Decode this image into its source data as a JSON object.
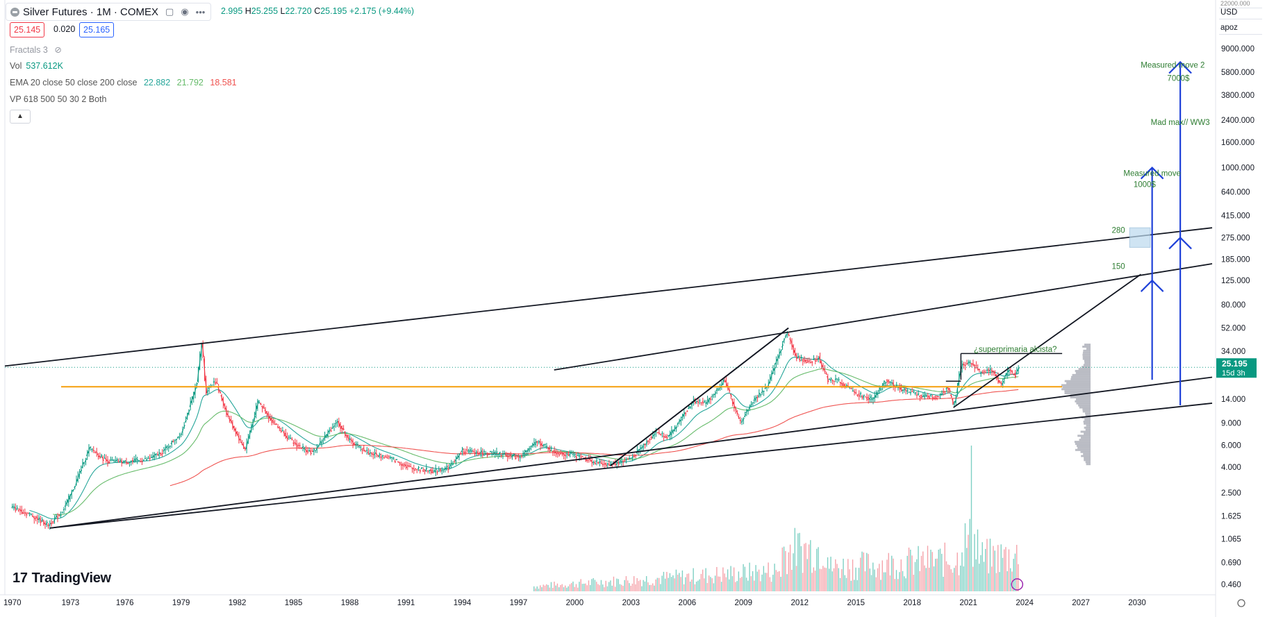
{
  "header": {
    "symbol": "Silver Futures · 1M · COMEX",
    "ohlc_tail": "2.995",
    "high_label": "H",
    "high": "25.255",
    "low_label": "L",
    "low": "22.720",
    "close_label": "C",
    "close": "25.195",
    "change": "+2.175 (+9.44%)",
    "bid": "25.145",
    "spread": "0.020",
    "ask": "25.165"
  },
  "indicators": {
    "fractals": "Fractals 3",
    "vol_label": "Vol",
    "vol_value": "537.612K",
    "ema_label": "EMA 20 close 50 close 200 close",
    "ema_values": [
      "22.882",
      "21.792",
      "18.581"
    ],
    "vp_label": "VP 618 500 50 30 2 Both"
  },
  "axis_panel": {
    "currency": "USD",
    "mode": "apoz",
    "top_cut": "22000.000"
  },
  "price_tag": {
    "value": "25.195",
    "countdown": "15d 3h"
  },
  "brand": "TradingView",
  "colors": {
    "up": "#089981",
    "down": "#f23645",
    "ema20": "#26a69a",
    "ema50": "#66bb6a",
    "ema200": "#ef5350",
    "blue": "#1e40d8",
    "orange": "#f59e0b",
    "annot": "#2e7d32"
  },
  "chart_data": {
    "type": "candlestick",
    "title": "Silver Futures · 1M · COMEX",
    "y_scale": "log",
    "ylim": [
      0.38,
      22000
    ],
    "xlim": [
      1969.6,
      2034.0
    ],
    "x_ticks": [
      "1970",
      "1973",
      "1976",
      "1979",
      "1982",
      "1985",
      "1988",
      "1991",
      "1994",
      "1997",
      "2000",
      "2003",
      "2006",
      "2009",
      "2012",
      "2015",
      "2018",
      "2021",
      "2024",
      "2027",
      "2030"
    ],
    "x_tick_years": [
      1970.0,
      1973.1,
      1976.0,
      1979.0,
      1982.0,
      1985.0,
      1988.0,
      1991.0,
      1994.0,
      1997.0,
      2000.0,
      2003.0,
      2006.0,
      2009.0,
      2012.0,
      2015.0,
      2018.0,
      2021.0,
      2024.0,
      2027.0,
      2030.0
    ],
    "y_ticks": [
      "9000.000",
      "5800.000",
      "3800.000",
      "2400.000",
      "1600.000",
      "1000.000",
      "640.000",
      "415.000",
      "275.000",
      "185.000",
      "125.000",
      "80.000",
      "52.000",
      "34.000",
      "14.000",
      "9.000",
      "6.000",
      "4.000",
      "2.500",
      "1.625",
      "1.065",
      "0.690",
      "0.460"
    ],
    "y_tick_values": [
      9000,
      5800,
      3800,
      2400,
      1600,
      1000,
      640,
      415,
      275,
      185,
      125,
      80,
      52,
      34,
      14,
      9,
      6,
      4,
      2.5,
      1.625,
      1.065,
      0.69,
      0.46
    ],
    "price_path": [
      [
        1970.0,
        1.9
      ],
      [
        1971.0,
        1.65
      ],
      [
        1971.9,
        1.38
      ],
      [
        1972.6,
        1.7
      ],
      [
        1973.2,
        2.6
      ],
      [
        1974.1,
        5.7
      ],
      [
        1975.0,
        4.5
      ],
      [
        1976.0,
        4.4
      ],
      [
        1977.2,
        4.6
      ],
      [
        1978.0,
        5.3
      ],
      [
        1979.0,
        7.5
      ],
      [
        1979.8,
        18
      ],
      [
        1980.1,
        41
      ],
      [
        1980.3,
        16
      ],
      [
        1980.8,
        20
      ],
      [
        1981.5,
        10
      ],
      [
        1982.4,
        5.5
      ],
      [
        1983.1,
        13.5
      ],
      [
        1983.8,
        9.5
      ],
      [
        1985.0,
        6.2
      ],
      [
        1986.0,
        5.2
      ],
      [
        1987.3,
        9.3
      ],
      [
        1988.0,
        6.5
      ],
      [
        1989.0,
        5.2
      ],
      [
        1990.2,
        4.7
      ],
      [
        1991.2,
        3.95
      ],
      [
        1992.5,
        3.7
      ],
      [
        1993.3,
        4.0
      ],
      [
        1994.0,
        5.4
      ],
      [
        1995.0,
        5.2
      ],
      [
        1996.0,
        5.1
      ],
      [
        1997.0,
        4.8
      ],
      [
        1998.0,
        6.4
      ],
      [
        1999.0,
        5.2
      ],
      [
        2000.0,
        5.0
      ],
      [
        2001.0,
        4.4
      ],
      [
        2001.9,
        4.15
      ],
      [
        2003.0,
        4.7
      ],
      [
        2004.3,
        7.6
      ],
      [
        2005.0,
        7.0
      ],
      [
        2006.3,
        13.5
      ],
      [
        2007.0,
        13.0
      ],
      [
        2008.0,
        20
      ],
      [
        2008.8,
        9.0
      ],
      [
        2009.5,
        13.5
      ],
      [
        2010.3,
        18
      ],
      [
        2011.3,
        49
      ],
      [
        2011.8,
        30
      ],
      [
        2012.5,
        28
      ],
      [
        2013.0,
        30
      ],
      [
        2013.5,
        20
      ],
      [
        2014.0,
        20
      ],
      [
        2015.0,
        15.5
      ],
      [
        2015.9,
        13.8
      ],
      [
        2016.6,
        20
      ],
      [
        2017.5,
        16.5
      ],
      [
        2018.5,
        14.8
      ],
      [
        2019.3,
        14.5
      ],
      [
        2019.9,
        17.5
      ],
      [
        2020.2,
        12
      ],
      [
        2020.6,
        26
      ],
      [
        2021.1,
        28
      ],
      [
        2021.6,
        23
      ],
      [
        2022.3,
        24
      ],
      [
        2022.7,
        18
      ],
      [
        2023.1,
        24
      ],
      [
        2023.5,
        22
      ],
      [
        2023.7,
        25.2
      ]
    ],
    "series": [
      {
        "name": "EMA 20 close",
        "value": 22.882
      },
      {
        "name": "EMA 50 close",
        "value": 21.792
      },
      {
        "name": "EMA 200 close",
        "value": 18.581
      }
    ],
    "volume_note": "Vol 537.612K",
    "trendlines": [
      {
        "from": [
          1969.6,
          25.8
        ],
        "to": [
          2034.0,
          330
        ]
      },
      {
        "from": [
          1998.9,
          24.0
        ],
        "to": [
          2034.0,
          170
        ]
      },
      {
        "from": [
          1972.0,
          1.3
        ],
        "to": [
          2034.0,
          21
        ]
      },
      {
        "from": [
          1972.0,
          1.3
        ],
        "to": [
          2034.0,
          13.0
        ]
      },
      {
        "from": [
          2001.9,
          4.1
        ],
        "to": [
          2011.4,
          52
        ]
      },
      {
        "from": [
          2001.9,
          4.1
        ],
        "to": [
          2011.4,
          52
        ]
      },
      {
        "from": [
          2020.2,
          12
        ],
        "to": [
          2030.2,
          140
        ]
      }
    ],
    "horizontal_levels": [
      {
        "value": 17.6,
        "from": 1972.6,
        "to": 2026.0
      }
    ],
    "range_box": {
      "from": [
        2020.6,
        32.5
      ],
      "to": [
        2026.0,
        20
      ]
    },
    "arrows": [
      {
        "x": 2030.8,
        "from": 20,
        "to": 1000,
        "heads": [
          1000,
          125
        ]
      },
      {
        "x": 2032.3,
        "from": 12.5,
        "to": 7000,
        "heads": [
          7000,
          275
        ]
      }
    ],
    "annotations": [
      {
        "text": "Measured move 2",
        "x": 2031.9,
        "y": 6300
      },
      {
        "text": "7000$",
        "x": 2032.2,
        "y": 4950
      },
      {
        "text": "Mad max// WW3",
        "x": 2032.3,
        "y": 2200
      },
      {
        "text": "Measured move",
        "x": 2030.8,
        "y": 860
      },
      {
        "text": "1000$",
        "x": 2030.4,
        "y": 700
      },
      {
        "text": "280",
        "x": 2029.0,
        "y": 300
      },
      {
        "text": "150",
        "x": 2029.0,
        "y": 155
      },
      {
        "text": "¿superprimaria alcista?",
        "x": 2023.5,
        "y": 33.5
      }
    ],
    "current_price": 25.195
  }
}
